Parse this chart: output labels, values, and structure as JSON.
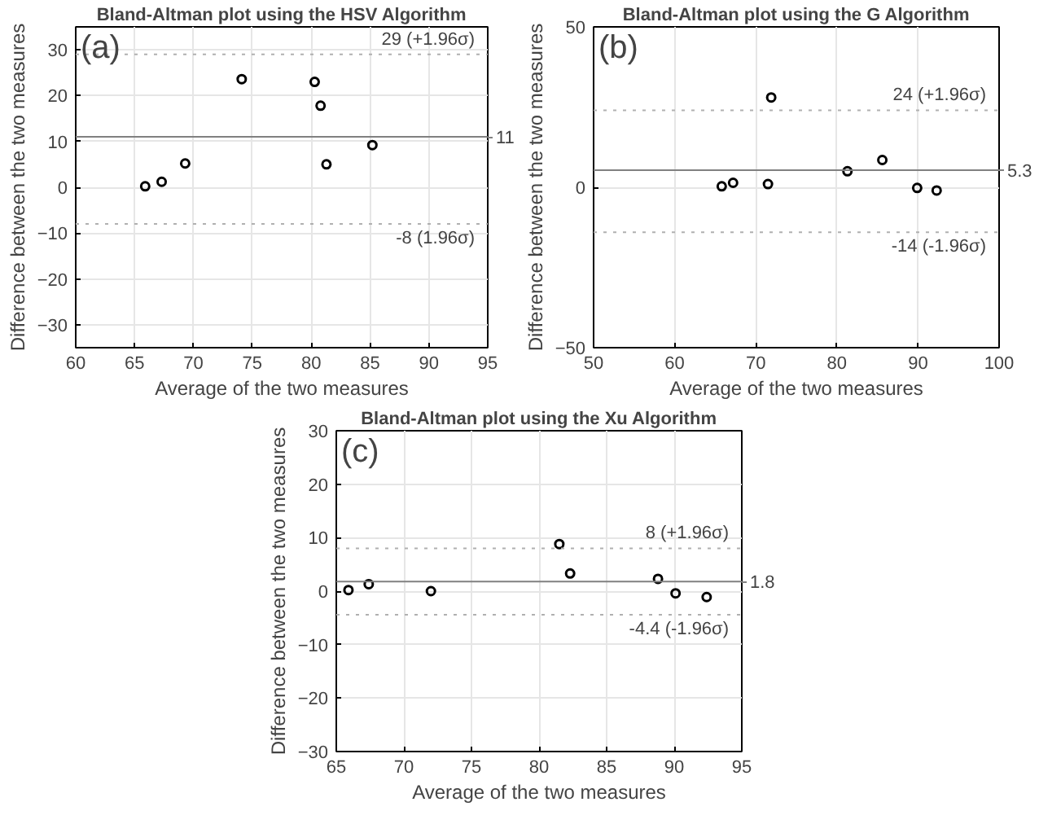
{
  "chart_data": [
    {
      "type": "scatter",
      "title": "Bland-Altman plot using the HSV Algorithm",
      "xlabel": "Average of the two measures",
      "ylabel": "Difference between the two measures",
      "annotations": [
        "(a)"
      ],
      "marker": "circle",
      "grid": true,
      "xlim": [
        60,
        95
      ],
      "xticks": [
        60,
        65,
        70,
        75,
        80,
        85,
        90,
        95
      ],
      "ylim": [
        -35,
        35
      ],
      "yticks": [
        -30,
        -20,
        -10,
        0,
        10,
        20,
        30
      ],
      "series": [
        {
          "color": "#000000",
          "x": [
            65.9,
            67.3,
            69.3,
            74.1,
            80.3,
            80.8,
            81.3,
            85.2
          ],
          "values": [
            0.2,
            1.2,
            5.2,
            23.6,
            23,
            17.8,
            5,
            9.2
          ]
        }
      ],
      "ref_lines": [
        {
          "axis": "y",
          "value": 29,
          "label": "29 (+1.96σ)",
          "line_style": "dotted",
          "color": "#b0b0b0"
        },
        {
          "axis": "y",
          "value": 11,
          "label": "11",
          "line_style": "solid",
          "color": "#808080"
        },
        {
          "axis": "y",
          "value": -8,
          "label": "-8 (1.96σ)",
          "line_style": "dotted",
          "color": "#b0b0b0"
        }
      ]
    },
    {
      "type": "scatter",
      "title": "Bland-Altman plot using the G Algorithm",
      "xlabel": "Average of the two measures",
      "ylabel": "Difference between the two measures",
      "annotations": [
        "(b)"
      ],
      "marker": "circle",
      "grid": true,
      "xlim": [
        50,
        100
      ],
      "xticks": [
        50,
        60,
        70,
        80,
        90,
        100
      ],
      "ylim": [
        -50,
        50
      ],
      "yticks": [
        -50,
        0,
        50
      ],
      "series": [
        {
          "color": "#000000",
          "x": [
            65.8,
            67.2,
            71.5,
            71.9,
            81.3,
            85.6,
            89.9,
            92.3
          ],
          "values": [
            0.3,
            1.4,
            1,
            28,
            5,
            8.5,
            -0.2,
            -1
          ]
        }
      ],
      "ref_lines": [
        {
          "axis": "y",
          "value": 24,
          "label": "24 (+1.96σ)",
          "line_style": "dotted",
          "color": "#b0b0b0"
        },
        {
          "axis": "y",
          "value": 5.3,
          "label": "5.3",
          "line_style": "solid",
          "color": "#808080"
        },
        {
          "axis": "y",
          "value": -14,
          "label": "-14 (-1.96σ)",
          "line_style": "dotted",
          "color": "#b0b0b0"
        }
      ]
    },
    {
      "type": "scatter",
      "title": "Bland-Altman plot using the Xu Algorithm",
      "xlabel": "Average of the two measures",
      "ylabel": "Difference between the two measures",
      "annotations": [
        "(c)"
      ],
      "marker": "circle",
      "grid": true,
      "xlim": [
        65,
        95
      ],
      "xticks": [
        65,
        70,
        75,
        80,
        85,
        90,
        95
      ],
      "ylim": [
        -30,
        30
      ],
      "yticks": [
        -30,
        -20,
        -10,
        0,
        10,
        20,
        30
      ],
      "series": [
        {
          "color": "#000000",
          "x": [
            65.9,
            67.4,
            72,
            81.5,
            82.3,
            88.8,
            90.1,
            92.4
          ],
          "values": [
            0.2,
            1.3,
            0,
            8.8,
            3.3,
            2.3,
            -0.4,
            -1.1
          ]
        }
      ],
      "ref_lines": [
        {
          "axis": "y",
          "value": 8,
          "label": "8 (+1.96σ)",
          "line_style": "dotted",
          "color": "#b0b0b0"
        },
        {
          "axis": "y",
          "value": 1.8,
          "label": "1.8",
          "line_style": "solid",
          "color": "#808080"
        },
        {
          "axis": "y",
          "value": -4.4,
          "label": "-4.4 (-1.96σ)",
          "line_style": "dotted",
          "color": "#b0b0b0"
        }
      ]
    }
  ]
}
